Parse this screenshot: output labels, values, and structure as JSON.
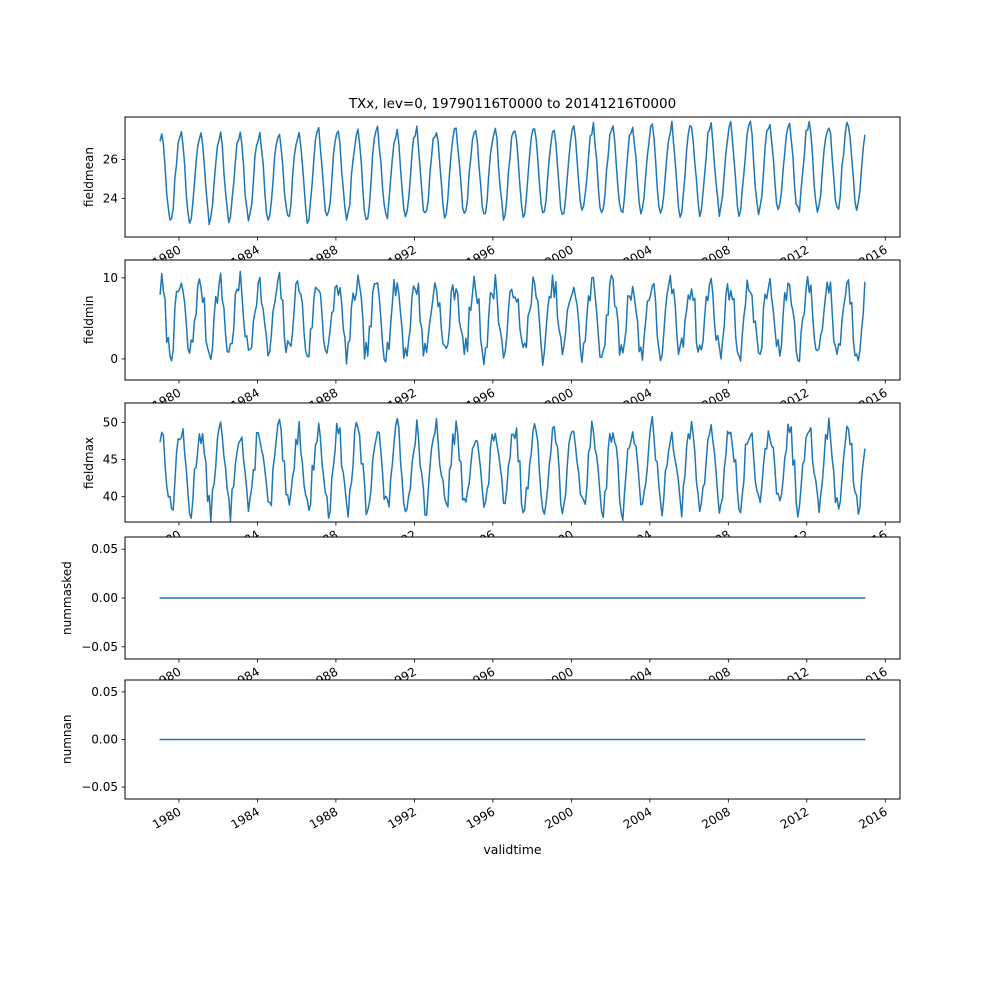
{
  "figure": {
    "title": "TXx, lev=0, 19790116T0000 to 20141216T0000",
    "xlabel": "validtime",
    "background_color": "#ffffff",
    "line_color": "#1f77b4"
  },
  "chart_data": [
    {
      "type": "line",
      "ylabel": "fieldmean",
      "yticks": [
        24,
        26
      ],
      "ytick_labels": [
        "24",
        "26"
      ],
      "ylim": [
        22.0,
        28.2
      ],
      "xlim": [
        1977.25,
        2016.75
      ],
      "xticks": [
        1980,
        1984,
        1988,
        1992,
        1996,
        2000,
        2004,
        2008,
        2012,
        2016
      ],
      "xtick_labels": [
        "1980",
        "1984",
        "1988",
        "1992",
        "1996",
        "2000",
        "2004",
        "2008",
        "2012",
        "2016"
      ],
      "x_start": 1979.0417,
      "x_end": 2014.9583,
      "n_points": 432,
      "points_per_year": 12,
      "grid": false,
      "series": [
        {
          "name": "fieldmean",
          "color": "#1f77b4",
          "monthly_climatology": [
            27.1,
            27.3,
            26.6,
            25.5,
            24.3,
            23.3,
            22.8,
            23.0,
            23.7,
            24.9,
            25.9,
            26.7
          ],
          "noise_amplitude": 0.25,
          "trend_total": 0.6,
          "seed": 3
        }
      ]
    },
    {
      "type": "line",
      "ylabel": "fieldmin",
      "yticks": [
        0,
        10
      ],
      "ytick_labels": [
        "0",
        "10"
      ],
      "ylim": [
        -2.6,
        12.2
      ],
      "xlim": [
        1977.25,
        2016.75
      ],
      "xticks": [
        1980,
        1984,
        1988,
        1992,
        1996,
        2000,
        2004,
        2008,
        2012,
        2016
      ],
      "xtick_labels": [
        "1980",
        "1984",
        "1988",
        "1992",
        "1996",
        "2000",
        "2004",
        "2008",
        "2012",
        "2016"
      ],
      "x_start": 1979.0417,
      "x_end": 2014.9583,
      "n_points": 432,
      "points_per_year": 12,
      "grid": false,
      "series": [
        {
          "name": "fieldmin",
          "color": "#1f77b4",
          "monthly_climatology": [
            8.8,
            9.2,
            8.0,
            6.0,
            3.5,
            1.5,
            0.8,
            1.2,
            2.5,
            4.8,
            6.8,
            8.2
          ],
          "noise_amplitude": 1.6,
          "trend_total": 0.0,
          "seed": 7
        }
      ]
    },
    {
      "type": "line",
      "ylabel": "fieldmax",
      "yticks": [
        40,
        45,
        50
      ],
      "ytick_labels": [
        "40",
        "45",
        "50"
      ],
      "ylim": [
        36.6,
        52.6
      ],
      "xlim": [
        1977.25,
        2016.75
      ],
      "xticks": [
        1980,
        1984,
        1988,
        1992,
        1996,
        2000,
        2004,
        2008,
        2012,
        2016
      ],
      "xtick_labels": [
        "1980",
        "1984",
        "1988",
        "1992",
        "1996",
        "2000",
        "2004",
        "2008",
        "2012",
        "2016"
      ],
      "x_start": 1979.0417,
      "x_end": 2014.9583,
      "n_points": 432,
      "points_per_year": 12,
      "grid": false,
      "series": [
        {
          "name": "fieldmax",
          "color": "#1f77b4",
          "monthly_climatology": [
            48.3,
            48.8,
            47.5,
            45.5,
            43.0,
            40.5,
            38.5,
            38.2,
            39.5,
            42.5,
            45.2,
            47.3
          ],
          "noise_amplitude": 1.7,
          "trend_total": 0.4,
          "seed": 13
        }
      ]
    },
    {
      "type": "line",
      "ylabel": "nummasked",
      "yticks": [
        -0.05,
        0.0,
        0.05
      ],
      "ytick_labels": [
        "−0.05",
        "0.00",
        "0.05"
      ],
      "ylim": [
        -0.0625,
        0.0625
      ],
      "xlim": [
        1977.25,
        2016.75
      ],
      "xticks": [
        1980,
        1984,
        1988,
        1992,
        1996,
        2000,
        2004,
        2008,
        2012,
        2016
      ],
      "xtick_labels": [
        "1980",
        "1984",
        "1988",
        "1992",
        "1996",
        "2000",
        "2004",
        "2008",
        "2012",
        "2016"
      ],
      "x_start": 1979.0417,
      "x_end": 2014.9583,
      "n_points": 432,
      "points_per_year": 12,
      "grid": false,
      "series": [
        {
          "name": "nummasked",
          "color": "#1f77b4",
          "constant_value": 0
        }
      ]
    },
    {
      "type": "line",
      "ylabel": "numnan",
      "yticks": [
        -0.05,
        0.0,
        0.05
      ],
      "ytick_labels": [
        "−0.05",
        "0.00",
        "0.05"
      ],
      "ylim": [
        -0.0625,
        0.0625
      ],
      "xlim": [
        1977.25,
        2016.75
      ],
      "xticks": [
        1980,
        1984,
        1988,
        1992,
        1996,
        2000,
        2004,
        2008,
        2012,
        2016
      ],
      "xtick_labels": [
        "1980",
        "1984",
        "1988",
        "1992",
        "1996",
        "2000",
        "2004",
        "2008",
        "2012",
        "2016"
      ],
      "x_start": 1979.0417,
      "x_end": 2014.9583,
      "n_points": 432,
      "points_per_year": 12,
      "grid": false,
      "series": [
        {
          "name": "numnan",
          "color": "#1f77b4",
          "constant_value": 0
        }
      ]
    }
  ]
}
